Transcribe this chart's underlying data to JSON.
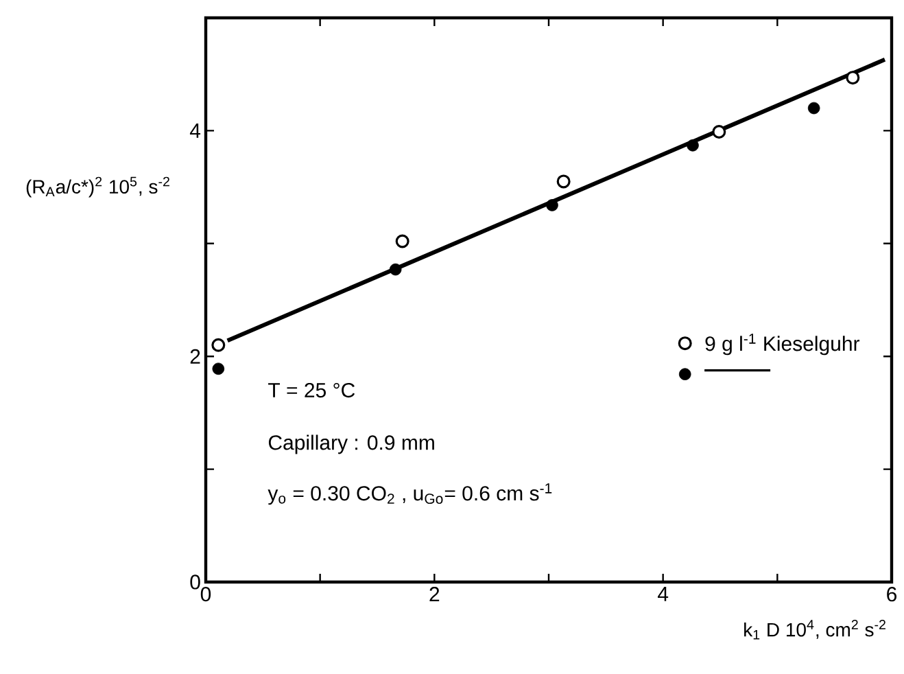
{
  "chart_data": {
    "type": "scatter",
    "xlabel": "k$_{1}$ D 10$^{4}$, cm$^{2}$ s$^{-2}$",
    "ylabel": "(R$_{A}$a/c*)$^{2}$ 10$^{5}$, s$^{-2}$",
    "xlim": [
      0,
      6
    ],
    "ylim": [
      0,
      5
    ],
    "xticks": [
      0,
      {
        "value": 1,
        "label": null
      },
      2,
      {
        "value": 3,
        "label": null
      },
      4,
      {
        "value": 5,
        "label": null
      },
      6
    ],
    "yticks": [
      0,
      {
        "value": 1,
        "label": null
      },
      2,
      {
        "value": 3,
        "label": null
      },
      4,
      {
        "value": 5,
        "label": null
      }
    ],
    "legend": "right",
    "grid": false,
    "annotations": [
      "T = 25 °C",
      "Capillary : 0.9 mm",
      "y$_{o}$ = 0.30 CO$_{2}$ , u$_{Go}$= 0.6 cm s$^{-1}$"
    ],
    "series": [
      {
        "name": "9 g l$^{-1}$ Kieselguhr",
        "color": "#000000",
        "marker": "circle",
        "x": [
          0.11,
          1.72,
          3.13,
          4.49,
          5.66
        ],
        "values": [
          2.1,
          3.02,
          3.55,
          3.99,
          4.47
        ]
      },
      {
        "color": "#000000",
        "marker": "circle",
        "x": [
          0.11,
          1.66,
          3.03,
          4.26,
          5.32
        ],
        "values": [
          1.89,
          2.77,
          3.34,
          3.87,
          4.2
        ]
      },
      {
        "type": "line",
        "color": "#000000",
        "line_style": "solid",
        "marker": "none",
        "x": [
          0.19,
          5.94
        ],
        "values": [
          2.14,
          4.63
        ]
      }
    ]
  }
}
